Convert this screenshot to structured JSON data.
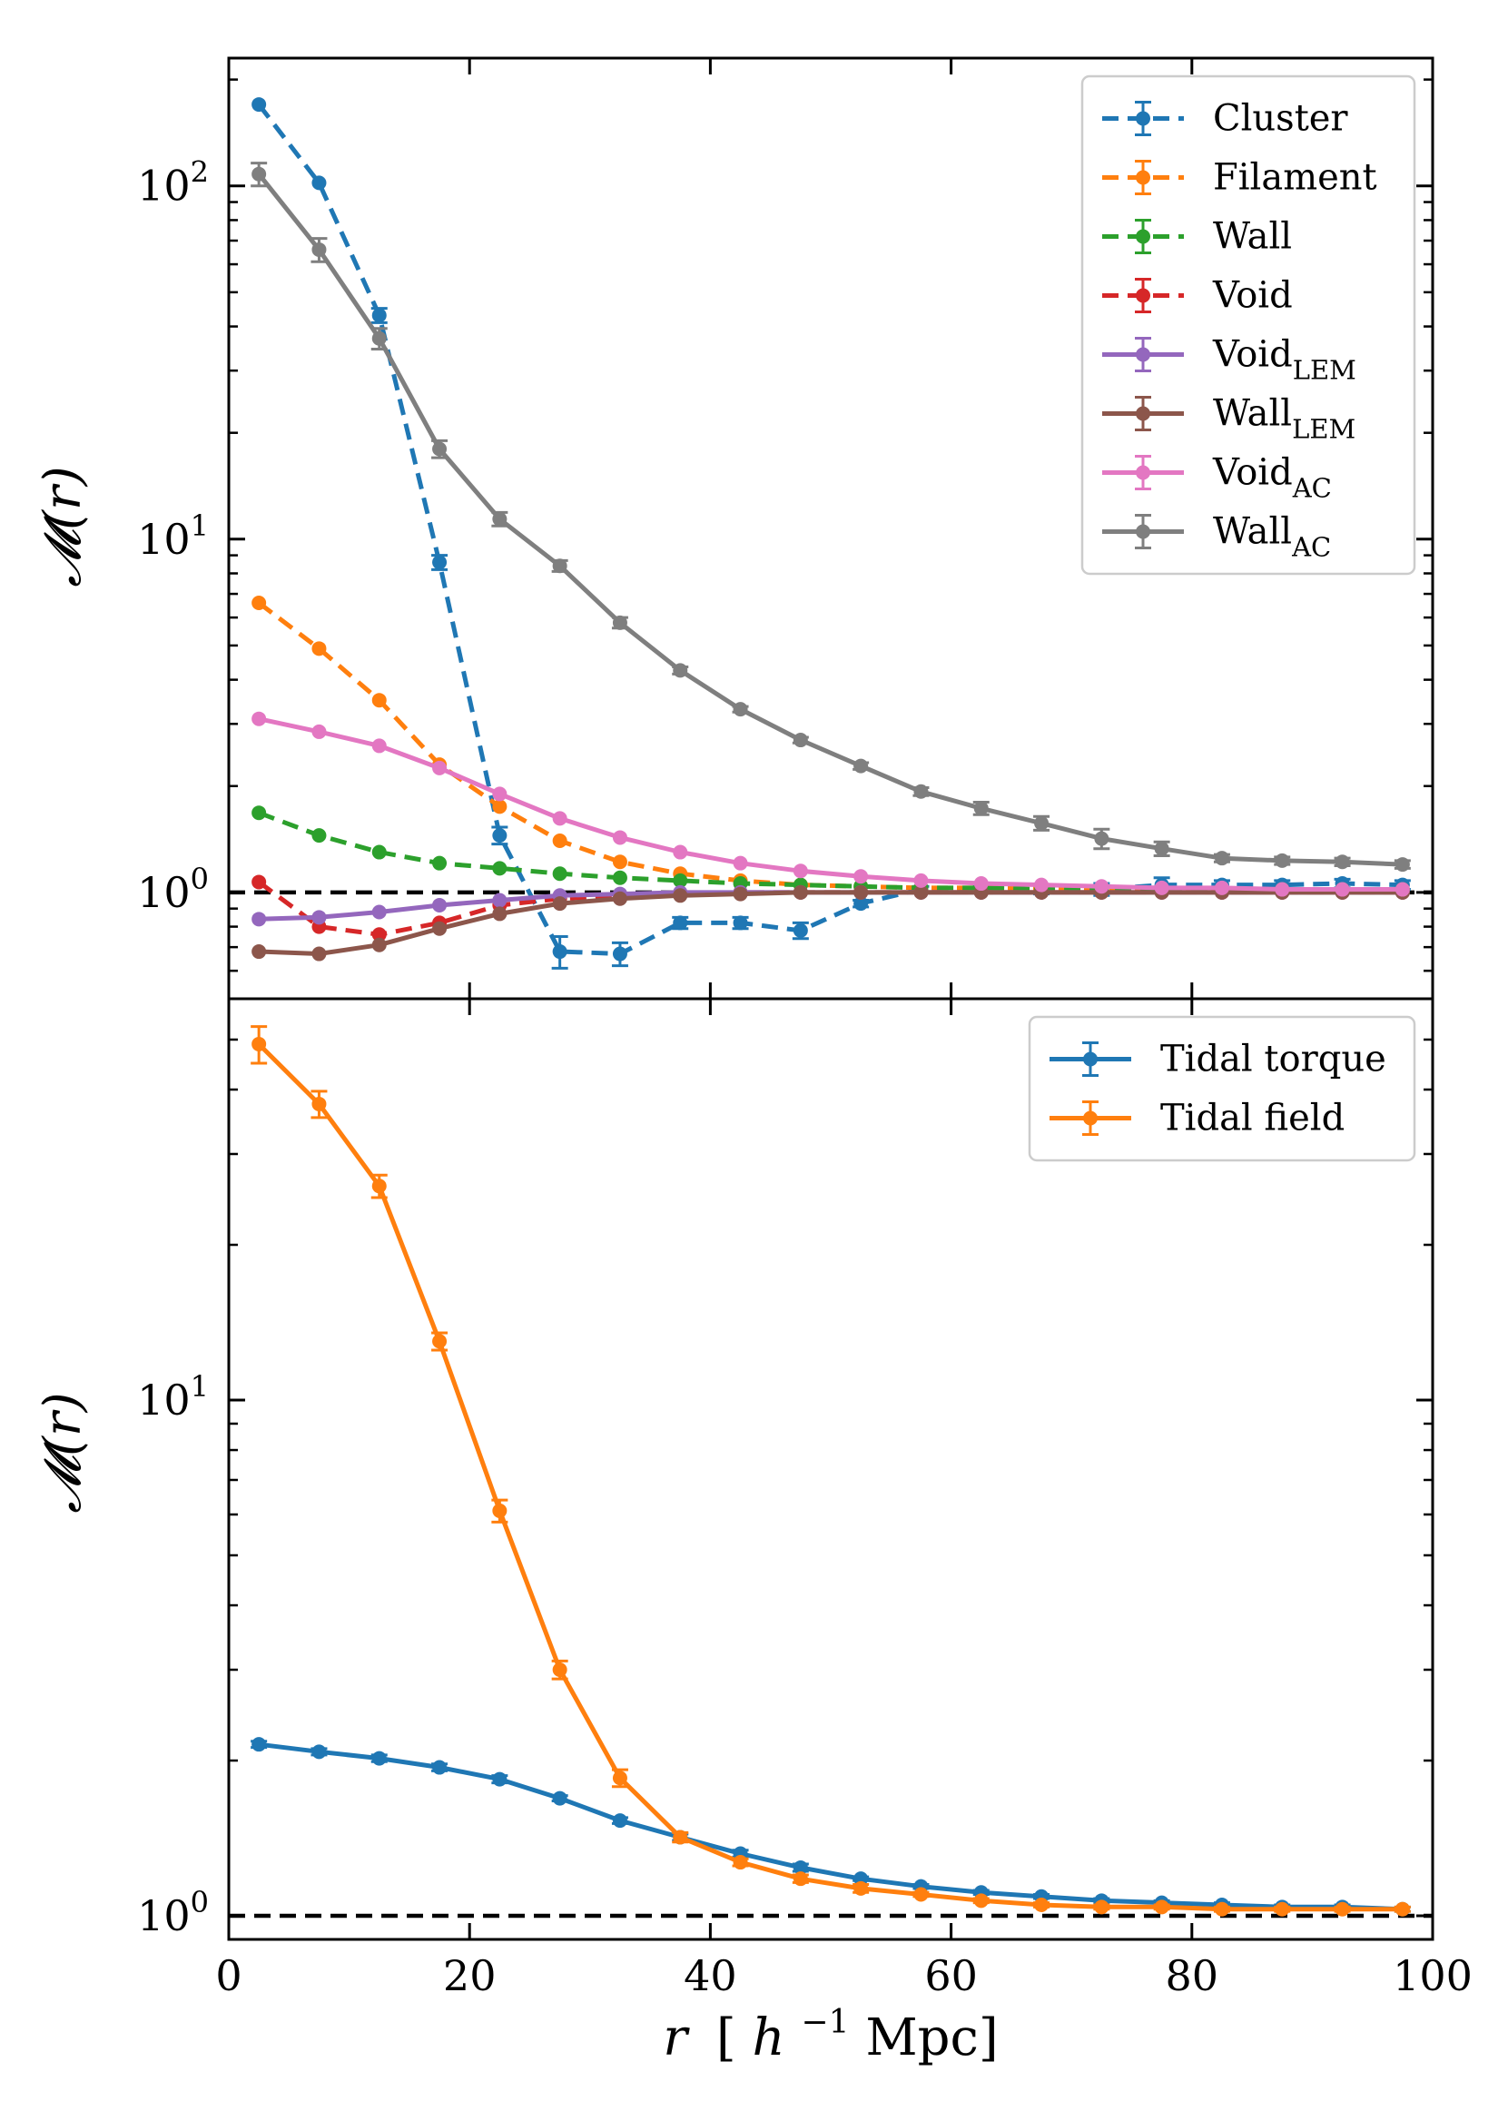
{
  "chart_data": [
    {
      "type": "line",
      "panel": "top",
      "x_scale": "linear",
      "y_scale": "log",
      "xlim": [
        0,
        100
      ],
      "ylim": [
        0.5,
        230
      ],
      "ylabel": "M(r)",
      "ylabel_display": "𝓜(r)",
      "yticks": [
        {
          "value": 1,
          "base": "10",
          "exp": "0"
        },
        {
          "value": 10,
          "base": "10",
          "exp": "1"
        },
        {
          "value": 100,
          "base": "10",
          "exp": "2"
        }
      ],
      "reference_line": 1,
      "legend_position": "top-right",
      "x": [
        2.5,
        7.5,
        12.5,
        17.5,
        22.5,
        27.5,
        32.5,
        37.5,
        42.5,
        47.5,
        52.5,
        57.5,
        62.5,
        67.5,
        72.5,
        77.5,
        82.5,
        87.5,
        92.5,
        97.5
      ],
      "series": [
        {
          "name": "Cluster",
          "sub": "",
          "color": "#1f77b4",
          "dashed": true,
          "values": [
            170,
            102,
            43,
            8.6,
            1.45,
            0.68,
            0.67,
            0.82,
            0.82,
            0.78,
            0.93,
            1.02,
            1.02,
            1.02,
            1.02,
            1.05,
            1.05,
            1.05,
            1.06,
            1.05
          ],
          "errors": [
            0,
            0,
            2.0,
            0.4,
            0.08,
            0.07,
            0.05,
            0.03,
            0.03,
            0.04,
            0.02,
            0.02,
            0.02,
            0.03,
            0.04,
            0.05,
            0.03,
            0.03,
            0.03,
            0.03
          ]
        },
        {
          "name": "Filament",
          "sub": "",
          "color": "#ff7f0e",
          "dashed": true,
          "values": [
            6.6,
            4.9,
            3.5,
            2.3,
            1.75,
            1.4,
            1.22,
            1.13,
            1.08,
            1.05,
            1.04,
            1.03,
            1.03,
            1.03,
            1.02,
            1.02,
            1.02,
            1.02,
            1.02,
            1.02
          ],
          "errors": [
            0,
            0,
            0,
            0,
            0,
            0,
            0,
            0,
            0,
            0,
            0,
            0,
            0,
            0,
            0,
            0,
            0,
            0,
            0,
            0
          ]
        },
        {
          "name": "Wall",
          "sub": "",
          "color": "#2ca02c",
          "dashed": true,
          "values": [
            1.68,
            1.45,
            1.3,
            1.21,
            1.17,
            1.13,
            1.1,
            1.08,
            1.06,
            1.05,
            1.04,
            1.03,
            1.03,
            1.02,
            1.02,
            1.02,
            1.02,
            1.02,
            1.02,
            1.02
          ],
          "errors": [
            0,
            0,
            0,
            0,
            0,
            0,
            0,
            0,
            0,
            0,
            0,
            0,
            0,
            0,
            0,
            0,
            0,
            0,
            0,
            0
          ]
        },
        {
          "name": "Void",
          "sub": "",
          "color": "#d62728",
          "dashed": true,
          "values": [
            1.07,
            0.8,
            0.76,
            0.82,
            0.92,
            0.96,
            0.98,
            0.99,
            1.0,
            1.0,
            1.0,
            1.0,
            1.0,
            1.0,
            1.0,
            1.0,
            1.0,
            1.0,
            1.0,
            1.0
          ],
          "errors": [
            0,
            0,
            0,
            0,
            0,
            0,
            0,
            0,
            0,
            0,
            0,
            0,
            0,
            0,
            0,
            0,
            0,
            0,
            0,
            0
          ]
        },
        {
          "name": "Void",
          "sub": "LEM",
          "color": "#9467bd",
          "dashed": false,
          "values": [
            0.84,
            0.85,
            0.88,
            0.92,
            0.95,
            0.98,
            0.99,
            1.0,
            1.0,
            1.0,
            1.0,
            1.0,
            1.0,
            1.0,
            1.0,
            1.0,
            1.0,
            1.0,
            1.0,
            1.0
          ],
          "errors": [
            0,
            0,
            0,
            0,
            0,
            0,
            0,
            0,
            0,
            0,
            0,
            0,
            0,
            0,
            0,
            0,
            0,
            0,
            0,
            0
          ]
        },
        {
          "name": "Wall",
          "sub": "LEM",
          "color": "#8c564b",
          "dashed": false,
          "values": [
            0.68,
            0.67,
            0.71,
            0.79,
            0.87,
            0.93,
            0.96,
            0.98,
            0.99,
            1.0,
            1.0,
            1.0,
            1.0,
            1.0,
            1.0,
            1.0,
            1.0,
            1.0,
            1.0,
            1.0
          ],
          "errors": [
            0,
            0,
            0,
            0,
            0,
            0,
            0,
            0,
            0,
            0,
            0,
            0,
            0,
            0,
            0,
            0,
            0,
            0,
            0,
            0
          ]
        },
        {
          "name": "Void",
          "sub": "AC",
          "color": "#e377c2",
          "dashed": false,
          "values": [
            3.1,
            2.85,
            2.6,
            2.25,
            1.9,
            1.62,
            1.43,
            1.3,
            1.21,
            1.15,
            1.11,
            1.08,
            1.06,
            1.05,
            1.04,
            1.03,
            1.03,
            1.02,
            1.02,
            1.02
          ],
          "errors": [
            0,
            0,
            0,
            0,
            0,
            0,
            0,
            0,
            0,
            0,
            0,
            0,
            0,
            0,
            0,
            0,
            0,
            0,
            0,
            0
          ]
        },
        {
          "name": "Wall",
          "sub": "AC",
          "color": "#7f7f7f",
          "dashed": false,
          "values": [
            108,
            66,
            37,
            18,
            11.4,
            8.4,
            5.8,
            4.25,
            3.3,
            2.7,
            2.28,
            1.93,
            1.73,
            1.57,
            1.42,
            1.33,
            1.25,
            1.23,
            1.22,
            1.2
          ],
          "errors": [
            8,
            5,
            2.5,
            1.0,
            0.5,
            0.3,
            0.2,
            0.1,
            0.06,
            0.05,
            0.05,
            0.05,
            0.07,
            0.07,
            0.09,
            0.06,
            0.03,
            0.03,
            0.03,
            0.03
          ]
        }
      ]
    },
    {
      "type": "line",
      "panel": "bottom",
      "x_scale": "linear",
      "y_scale": "log",
      "xlim": [
        0,
        100
      ],
      "ylim": [
        0.9,
        60
      ],
      "xlabel": "r [h^-1 Mpc]",
      "ylabel": "M(r)",
      "ylabel_display": "𝓜(r)",
      "xticks": [
        0,
        20,
        40,
        60,
        80,
        100
      ],
      "yticks": [
        {
          "value": 1,
          "base": "10",
          "exp": "0"
        },
        {
          "value": 10,
          "base": "10",
          "exp": "1"
        }
      ],
      "reference_line": 1,
      "legend_position": "top-right",
      "x": [
        2.5,
        7.5,
        12.5,
        17.5,
        22.5,
        27.5,
        32.5,
        37.5,
        42.5,
        47.5,
        52.5,
        57.5,
        62.5,
        67.5,
        72.5,
        77.5,
        82.5,
        87.5,
        92.5,
        97.5
      ],
      "series": [
        {
          "name": "Tidal torque",
          "sub": "",
          "color": "#1f77b4",
          "dashed": false,
          "values": [
            2.15,
            2.08,
            2.02,
            1.94,
            1.84,
            1.69,
            1.53,
            1.42,
            1.32,
            1.24,
            1.18,
            1.14,
            1.11,
            1.09,
            1.07,
            1.06,
            1.05,
            1.04,
            1.04,
            1.03
          ],
          "errors": [
            0.03,
            0.03,
            0.03,
            0.03,
            0.03,
            0.02,
            0.02,
            0.02,
            0.02,
            0.02,
            0.01,
            0.01,
            0.01,
            0.01,
            0.01,
            0.01,
            0.01,
            0.01,
            0.01,
            0.01
          ]
        },
        {
          "name": "Tidal field",
          "sub": "",
          "color": "#ff7f0e",
          "dashed": false,
          "values": [
            49,
            37.5,
            26,
            13,
            6.1,
            3.0,
            1.85,
            1.42,
            1.27,
            1.18,
            1.13,
            1.1,
            1.07,
            1.05,
            1.04,
            1.04,
            1.03,
            1.03,
            1.03,
            1.03
          ],
          "errors": [
            4,
            2.2,
            1.3,
            0.5,
            0.3,
            0.12,
            0.07,
            0.03,
            0.02,
            0.02,
            0.02,
            0.01,
            0.01,
            0.01,
            0.01,
            0.01,
            0.01,
            0.01,
            0.01,
            0.01
          ]
        }
      ]
    }
  ],
  "xlabel_display": {
    "r": "r",
    "open": "[",
    "h": "h",
    "exp": "−1",
    "unit": "Mpc]"
  }
}
